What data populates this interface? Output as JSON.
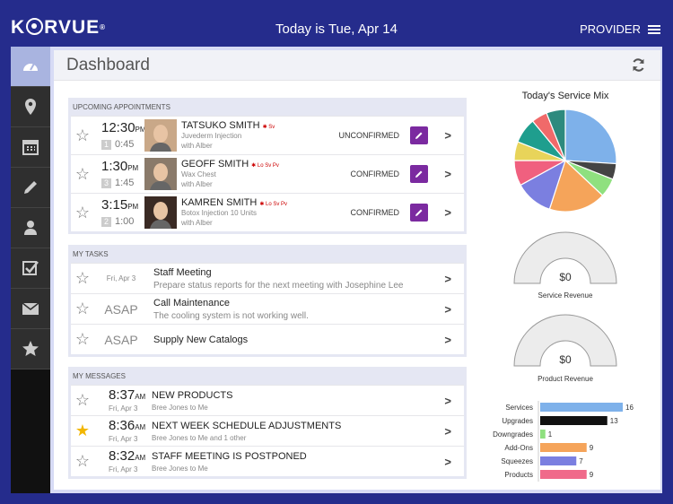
{
  "header": {
    "logo": "KORVUE",
    "logo_mark": "®",
    "date": "Today is Tue, Apr 14",
    "provider": "PROVIDER"
  },
  "sidebar": [
    {
      "icon": "dashboard-icon",
      "active": true
    },
    {
      "icon": "location-icon"
    },
    {
      "icon": "calendar-icon"
    },
    {
      "icon": "pencil-icon"
    },
    {
      "icon": "person-icon"
    },
    {
      "icon": "checkbox-icon"
    },
    {
      "icon": "mail-icon"
    },
    {
      "icon": "star-icon"
    }
  ],
  "page": {
    "title": "Dashboard"
  },
  "appointments": {
    "header": "UPCOMING APPOINTMENTS",
    "items": [
      {
        "time": "12:30",
        "ampm": "PM",
        "count": "1",
        "duration": "0:45",
        "name": "TATSUKO SMITH",
        "tags": "Sv",
        "service": "Juvederm Injection",
        "with": "with Alber",
        "status": "UNCONFIRMED",
        "photo_bg": "#c9a888"
      },
      {
        "time": "1:30",
        "ampm": "PM",
        "count": "3",
        "duration": "1:45",
        "name": "GEOFF SMITH",
        "tags": "Lo Sv Pv",
        "service": "Wax Chest",
        "with": "with Alber",
        "status": "CONFIRMED",
        "photo_bg": "#8a7a6a"
      },
      {
        "time": "3:15",
        "ampm": "PM",
        "count": "2",
        "duration": "1:00",
        "name": "KAMREN SMITH",
        "tags": "Lo Sv Pv",
        "service": "Botox Injection 10 Units",
        "with": "with Alber",
        "status": "CONFIRMED",
        "photo_bg": "#3a2a24"
      }
    ]
  },
  "tasks": {
    "header": "MY TASKS",
    "items": [
      {
        "date": "Fri, Apr 3",
        "title": "Staff Meeting",
        "desc": "Prepare status reports for the next meeting with Josephine Lee"
      },
      {
        "date": "ASAP",
        "title": "Call Maintenance",
        "desc": "The cooling system is not working well."
      },
      {
        "date": "ASAP",
        "title": "Supply New Catalogs",
        "desc": ""
      }
    ]
  },
  "messages": {
    "header": "MY MESSAGES",
    "items": [
      {
        "time": "8:37",
        "ampm": "AM",
        "date": "Fri, Apr 3",
        "title": "NEW PRODUCTS",
        "from": "Bree Jones to Me",
        "starred": false
      },
      {
        "time": "8:36",
        "ampm": "AM",
        "date": "Fri, Apr 3",
        "title": "NEXT WEEK SCHEDULE ADJUSTMENTS",
        "from": "Bree Jones to Me and 1 other",
        "starred": true
      },
      {
        "time": "8:32",
        "ampm": "AM",
        "date": "Fri, Apr 3",
        "title": "STAFF MEETING IS POSTPONED",
        "from": "Bree Jones to Me",
        "starred": false
      }
    ]
  },
  "chart_data": [
    {
      "type": "pie",
      "title": "Today's Service Mix",
      "values": [
        26,
        5,
        6,
        18,
        12,
        8,
        6,
        8,
        5,
        6
      ],
      "colors": [
        "#7eb1ea",
        "#444444",
        "#8fe07f",
        "#f5a45a",
        "#7b7fe0",
        "#f0607f",
        "#e8d45a",
        "#1f9e8e",
        "#f06a6a",
        "#2d8a7e"
      ]
    },
    {
      "type": "gauge",
      "value_label": "$0",
      "label": "Service Revenue"
    },
    {
      "type": "gauge",
      "value_label": "$0",
      "label": "Product Revenue"
    },
    {
      "type": "bar",
      "orientation": "horizontal",
      "categories": [
        "Services",
        "Upgrades",
        "Downgrades",
        "Add-Ons",
        "Squeezes",
        "Products"
      ],
      "values": [
        16,
        13,
        1,
        9,
        7,
        9
      ],
      "colors": [
        "#7eb1ea",
        "#111111",
        "#8fe07f",
        "#f5a45a",
        "#7b7fe0",
        "#f06a8a"
      ],
      "xlim": [
        0,
        16
      ]
    }
  ]
}
